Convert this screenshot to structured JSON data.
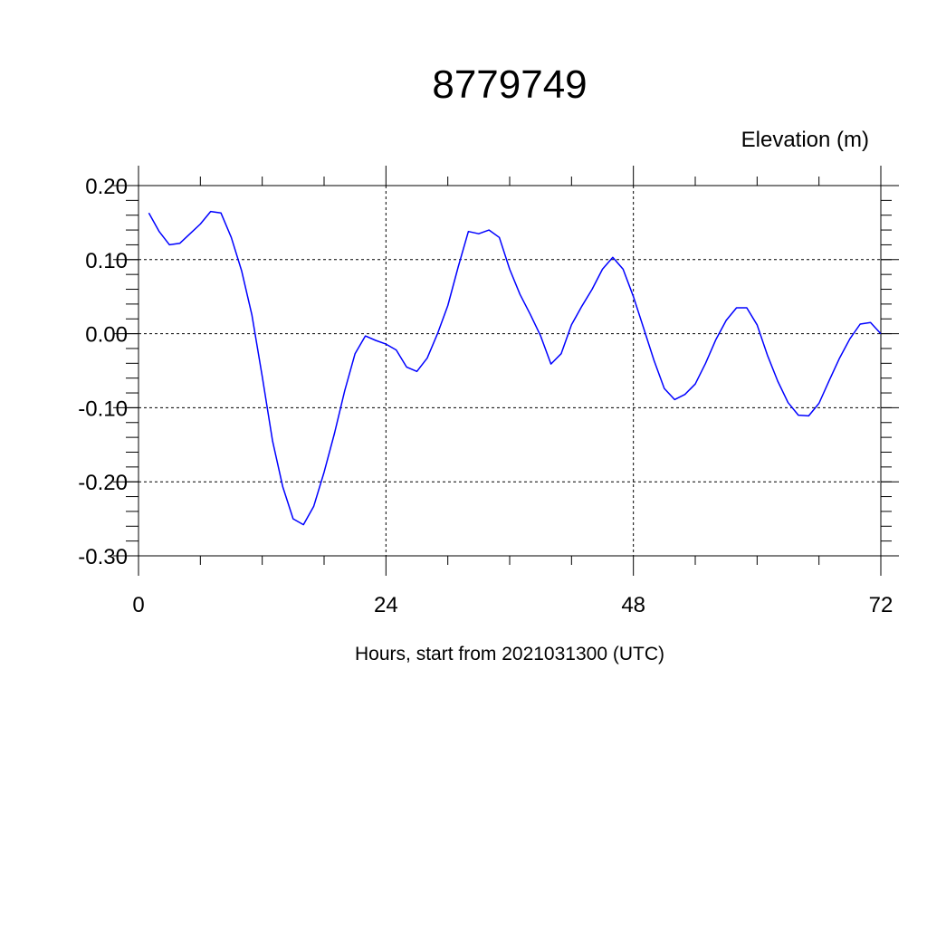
{
  "chart_data": {
    "type": "line",
    "title": "8779749",
    "subtitle": "Elevation (m)",
    "xlabel": "Hours, start from 2021031300 (UTC)",
    "ylabel": "",
    "xlim": [
      0,
      72
    ],
    "ylim": [
      -0.3,
      0.2
    ],
    "xticks": [
      0,
      24,
      48,
      72
    ],
    "xtick_labels": [
      "0",
      "24",
      "48",
      "72"
    ],
    "yticks": [
      0.2,
      0.1,
      0.0,
      -0.1,
      -0.2,
      -0.3
    ],
    "ytick_labels": [
      "0.20",
      "0.10",
      "0.00",
      "-0.10",
      "-0.20",
      "-0.30"
    ],
    "grid": true,
    "series": [
      {
        "color": "#0000ff",
        "x": [
          1,
          2,
          3,
          4,
          5,
          6,
          7,
          8,
          9,
          10,
          11,
          12,
          13,
          14,
          15,
          16,
          17,
          18,
          19,
          20,
          21,
          22,
          23,
          24,
          25,
          26,
          27,
          28,
          29,
          30,
          31,
          32,
          33,
          34,
          35,
          36,
          37,
          38,
          39,
          40,
          41,
          42,
          43,
          44,
          45,
          46,
          47,
          48,
          49,
          50,
          51,
          52,
          53,
          54,
          55,
          56,
          57,
          58,
          59,
          60,
          61,
          62,
          63,
          64,
          65,
          66,
          67,
          68,
          69,
          70,
          71,
          72
        ],
        "y": [
          0.163,
          0.138,
          0.12,
          0.122,
          0.135,
          0.148,
          0.165,
          0.163,
          0.13,
          0.085,
          0.025,
          -0.058,
          -0.145,
          -0.207,
          -0.25,
          -0.258,
          -0.233,
          -0.187,
          -0.135,
          -0.077,
          -0.027,
          -0.003,
          -0.009,
          -0.014,
          -0.022,
          -0.045,
          -0.051,
          -0.033,
          0.0,
          0.038,
          0.09,
          0.138,
          0.135,
          0.14,
          0.13,
          0.087,
          0.053,
          0.026,
          -0.003,
          -0.041,
          -0.027,
          0.012,
          0.037,
          0.06,
          0.087,
          0.103,
          0.087,
          0.05,
          0.007,
          -0.036,
          -0.074,
          -0.089,
          -0.082,
          -0.068,
          -0.04,
          -0.008,
          0.018,
          0.035,
          0.035,
          0.012,
          -0.029,
          -0.064,
          -0.093,
          -0.11,
          -0.111,
          -0.094,
          -0.063,
          -0.033,
          -0.007,
          0.013,
          0.015,
          0.0
        ]
      }
    ]
  }
}
